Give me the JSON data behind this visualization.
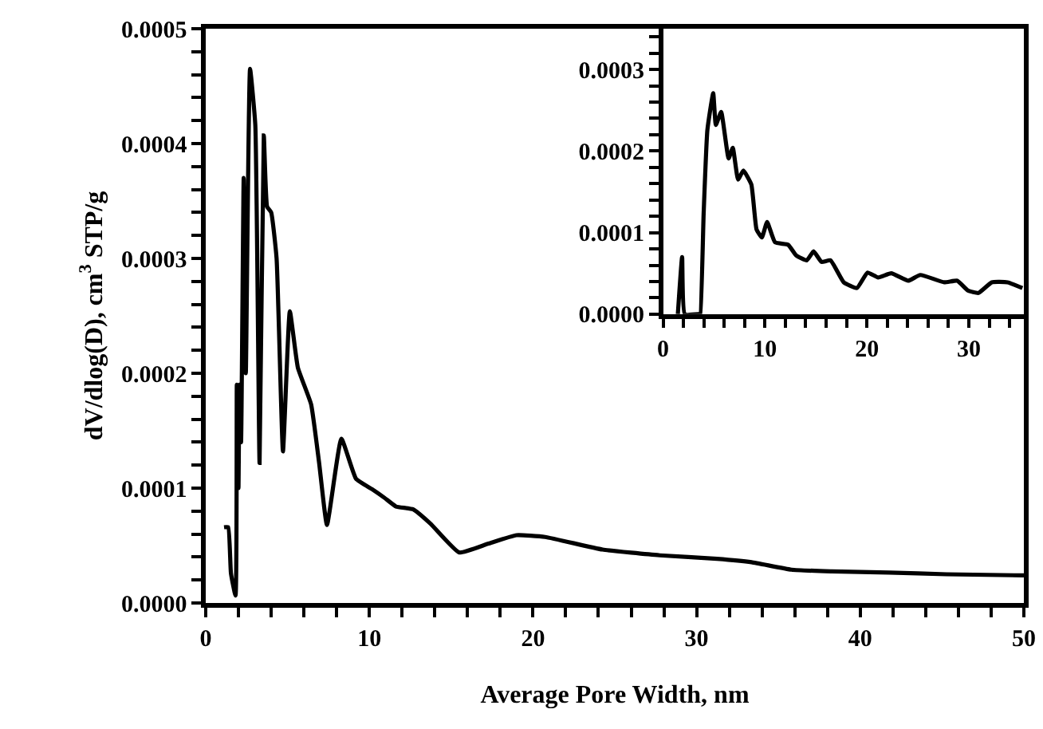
{
  "chart_data": [
    {
      "type": "line",
      "xlabel": "Average Pore Width, nm",
      "ylabel": "dV/dlog(D), cm$^{3}$ STP/g",
      "x": [
        1.12,
        1.37,
        1.54,
        1.82,
        1.9,
        2.0,
        2.06,
        2.16,
        2.32,
        2.45,
        2.71,
        3.03,
        3.29,
        3.55,
        3.75,
        4.0,
        4.33,
        4.72,
        5.14,
        5.63,
        6.44,
        6.93,
        7.41,
        8.29,
        9.19,
        10.17,
        10.93,
        11.63,
        12.68,
        13.74,
        15.49,
        17.24,
        18.99,
        20.74,
        24.25,
        27.75,
        31.25,
        33.36,
        35.8,
        38.26,
        41.76,
        45.27,
        50.0
      ],
      "series": [
        {
          "color": "#000000",
          "values": [
            6.6e-05,
            6.6e-05,
            2.6e-05,
            6.5e-06,
            0.00019,
            0.0001,
            0.00019,
            0.00014,
            0.00037,
            0.0002,
            0.000465,
            0.000416,
            0.000122,
            0.000407,
            0.000345,
            0.00034,
            0.0003,
            0.000132,
            0.000254,
            0.000205,
            0.000173,
            0.000122,
            6.8e-05,
            0.000143,
            0.000108,
            9.9e-05,
            9.15e-05,
            8.4e-05,
            8.15e-05,
            6.9e-05,
            4.4e-05,
            5.15e-05,
            5.9e-05,
            5.75e-05,
            4.65e-05,
            4.15e-05,
            3.85e-05,
            3.55e-05,
            2.9e-05,
            2.75e-05,
            2.65e-05,
            2.5e-05,
            2.4e-05
          ]
        }
      ],
      "xlim": [
        0,
        50
      ],
      "ylim": [
        0,
        0.0005
      ],
      "xticks": [
        0,
        {
          "value": 2,
          "label": null
        },
        {
          "value": 4,
          "label": null
        },
        {
          "value": 6,
          "label": null
        },
        {
          "value": 8,
          "label": null
        },
        10,
        {
          "value": 12,
          "label": null
        },
        {
          "value": 14,
          "label": null
        },
        {
          "value": 16,
          "label": null
        },
        {
          "value": 18,
          "label": null
        },
        20,
        {
          "value": 22,
          "label": null
        },
        {
          "value": 24,
          "label": null
        },
        {
          "value": 26,
          "label": null
        },
        {
          "value": 28,
          "label": null
        },
        30,
        {
          "value": 32,
          "label": null
        },
        {
          "value": 34,
          "label": null
        },
        {
          "value": 36,
          "label": null
        },
        {
          "value": 38,
          "label": null
        },
        40,
        {
          "value": 42,
          "label": null
        },
        {
          "value": 44,
          "label": null
        },
        {
          "value": 46,
          "label": null
        },
        {
          "value": 48,
          "label": null
        },
        50
      ],
      "yticks": [
        {
          "value": 0,
          "label": "0.0000"
        },
        {
          "value": 2e-05,
          "label": null
        },
        {
          "value": 4e-05,
          "label": null
        },
        {
          "value": 6e-05,
          "label": null
        },
        {
          "value": 8e-05,
          "label": null
        },
        {
          "value": 0.0001,
          "label": "0.0001"
        },
        {
          "value": 0.00012,
          "label": null
        },
        {
          "value": 0.00014,
          "label": null
        },
        {
          "value": 0.00016,
          "label": null
        },
        {
          "value": 0.00018,
          "label": null
        },
        {
          "value": 0.0002,
          "label": "0.0002"
        },
        {
          "value": 0.00022,
          "label": null
        },
        {
          "value": 0.00024,
          "label": null
        },
        {
          "value": 0.00026,
          "label": null
        },
        {
          "value": 0.00028,
          "label": null
        },
        {
          "value": 0.0003,
          "label": "0.0003"
        },
        {
          "value": 0.00032,
          "label": null
        },
        {
          "value": 0.00034,
          "label": null
        },
        {
          "value": 0.00036,
          "label": null
        },
        {
          "value": 0.00038,
          "label": null
        },
        {
          "value": 0.0004,
          "label": "0.0004"
        },
        {
          "value": 0.00042,
          "label": null
        },
        {
          "value": 0.00044,
          "label": null
        },
        {
          "value": 0.00046,
          "label": null
        },
        {
          "value": 0.00048,
          "label": null
        },
        {
          "value": 0.0005,
          "label": "0.0005"
        }
      ],
      "line_style": "solid",
      "marker": "none"
    },
    {
      "type": "line",
      "x": [
        1.45,
        1.87,
        2.13,
        3.6,
        3.66,
        3.98,
        4.35,
        4.92,
        5.18,
        5.7,
        6.43,
        6.84,
        7.36,
        7.88,
        8.66,
        9.17,
        9.69,
        10.21,
        10.99,
        12.28,
        13.06,
        14.1,
        14.77,
        15.55,
        16.43,
        17.73,
        19.02,
        20.06,
        21.1,
        22.39,
        24.05,
        25.24,
        27.58,
        28.87,
        29.91,
        30.95,
        32.25,
        33.8,
        35.26
      ],
      "series": [
        {
          "color": "#000000",
          "values": [
            0,
            7e-05,
            0,
            0,
            0,
            0.000123,
            0.000226,
            0.000271,
            0.000232,
            0.000248,
            0.000191,
            0.000204,
            0.000165,
            0.000176,
            0.000159,
            0.000104,
            9.4e-05,
            0.000113,
            8.8e-05,
            8.5e-05,
            7.2e-05,
            6.6e-05,
            7.7e-05,
            6.4e-05,
            6.6e-05,
            3.9e-05,
            3.2e-05,
            5.1e-05,
            4.5e-05,
            5e-05,
            4.1e-05,
            4.8e-05,
            3.9e-05,
            4.1e-05,
            2.9e-05,
            2.6e-05,
            3.9e-05,
            3.9e-05,
            3.2e-05
          ]
        }
      ],
      "xlim": [
        0,
        35.4
      ],
      "ylim": [
        0,
        0.00035
      ],
      "xticks": [
        0,
        {
          "value": 2,
          "label": null
        },
        {
          "value": 4,
          "label": null
        },
        {
          "value": 6,
          "label": null
        },
        {
          "value": 8,
          "label": null
        },
        10,
        {
          "value": 12,
          "label": null
        },
        {
          "value": 14,
          "label": null
        },
        {
          "value": 16,
          "label": null
        },
        {
          "value": 18,
          "label": null
        },
        20,
        {
          "value": 22,
          "label": null
        },
        {
          "value": 24,
          "label": null
        },
        {
          "value": 26,
          "label": null
        },
        {
          "value": 28,
          "label": null
        },
        30,
        {
          "value": 32,
          "label": null
        },
        {
          "value": 34,
          "label": null
        }
      ],
      "yticks": [
        {
          "value": 0,
          "label": "0.0000"
        },
        {
          "value": 2e-05,
          "label": null
        },
        {
          "value": 4e-05,
          "label": null
        },
        {
          "value": 6e-05,
          "label": null
        },
        {
          "value": 8e-05,
          "label": null
        },
        {
          "value": 0.0001,
          "label": "0.0001"
        },
        {
          "value": 0.00012,
          "label": null
        },
        {
          "value": 0.00014,
          "label": null
        },
        {
          "value": 0.00016,
          "label": null
        },
        {
          "value": 0.00018,
          "label": null
        },
        {
          "value": 0.0002,
          "label": "0.0002"
        },
        {
          "value": 0.00022,
          "label": null
        },
        {
          "value": 0.00024,
          "label": null
        },
        {
          "value": 0.00026,
          "label": null
        },
        {
          "value": 0.00028,
          "label": null
        },
        {
          "value": 0.0003,
          "label": "0.0003"
        },
        {
          "value": 0.00032,
          "label": null
        },
        {
          "value": 0.00034,
          "label": null
        }
      ],
      "line_style": "solid",
      "marker": "none"
    }
  ]
}
